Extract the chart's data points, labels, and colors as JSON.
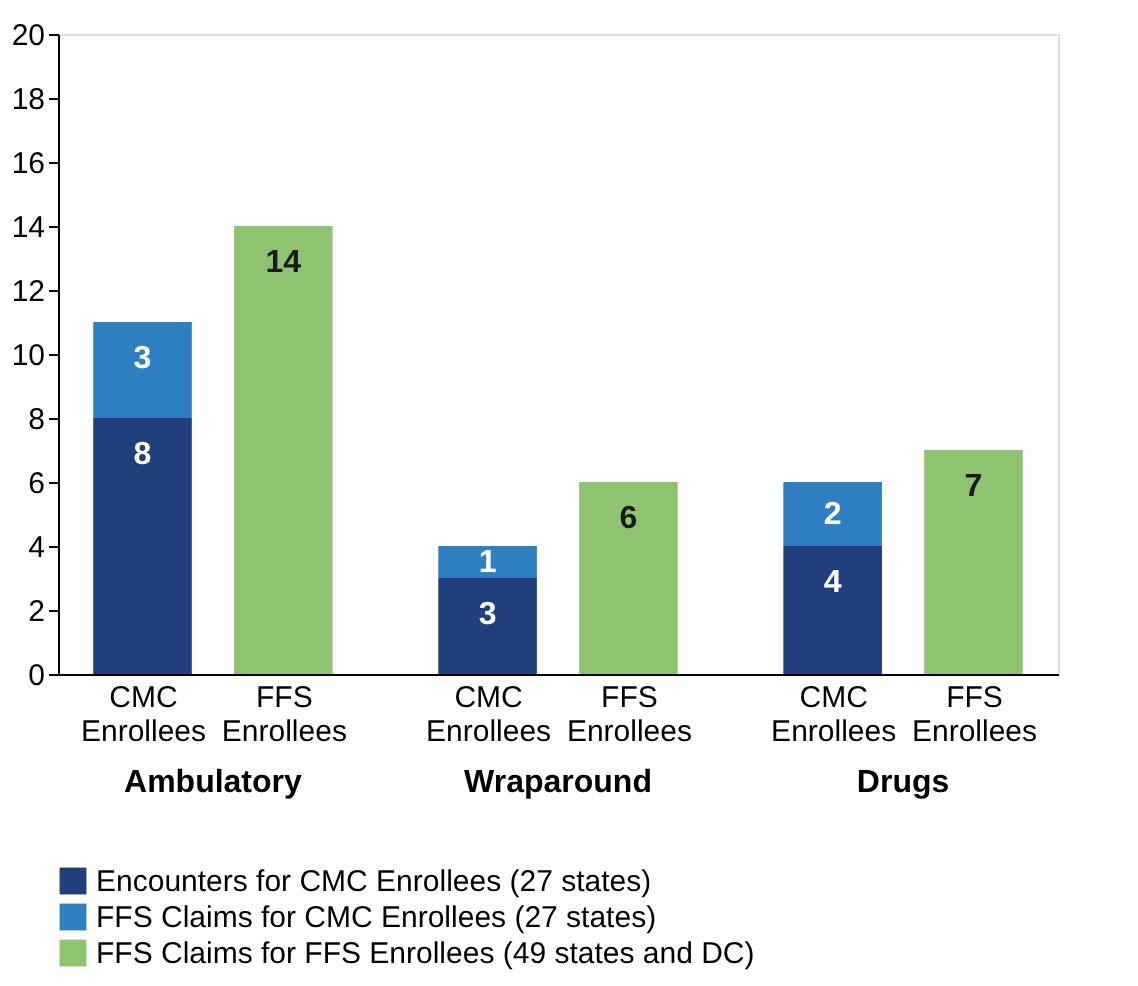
{
  "chart_data": {
    "type": "bar",
    "stacked": true,
    "data_labels": true,
    "grid": false,
    "legend": "bottom",
    "categories": [
      "CMC Enrollees",
      "FFS Enrollees",
      "CMC Enrollees",
      "FFS Enrollees",
      "CMC Enrollees",
      "FFS Enrollees"
    ],
    "annotations": [
      "Ambulatory",
      "Wraparound",
      "Drugs"
    ],
    "ylim": [
      0,
      20
    ],
    "yticks": [
      0,
      2,
      4,
      6,
      8,
      10,
      12,
      14,
      16,
      18,
      20
    ],
    "series": [
      {
        "name": "Encounters for CMC Enrollees (27 states)",
        "color": "#203f7c",
        "values": [
          8,
          null,
          3,
          null,
          4,
          null
        ]
      },
      {
        "name": "FFS Claims for CMC Enrollees (27 states)",
        "color": "#2f80c2",
        "values": [
          3,
          null,
          1,
          null,
          2,
          null
        ]
      },
      {
        "name": "FFS Claims for FFS Enrollees (49 states and DC)",
        "color": "#8ec46f",
        "values": [
          null,
          14,
          null,
          6,
          null,
          7
        ]
      }
    ]
  }
}
